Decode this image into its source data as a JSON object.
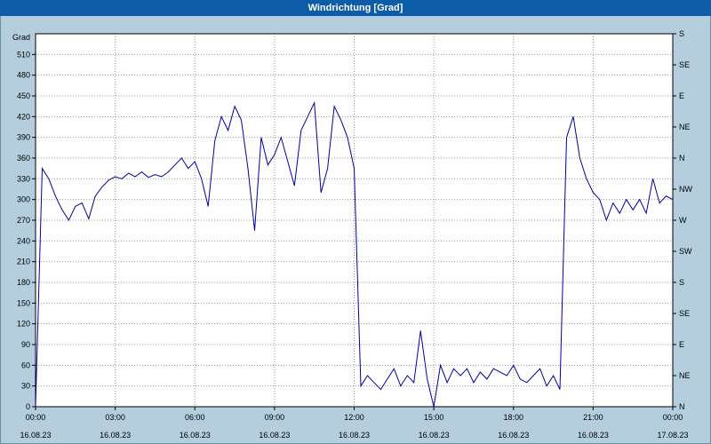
{
  "window": {
    "title": "Windrichtung [Grad]"
  },
  "colors": {
    "background": "#b4cede",
    "title_bg": "#0d5ca8",
    "title_fg": "#ffffff",
    "plot_bg": "#ffffff",
    "plot_border": "#000000",
    "grid": "#999999",
    "line": "#0000a0",
    "label": "#000000"
  },
  "chart_data": {
    "type": "line",
    "title": "Windrichtung [Grad]",
    "ylabel": "Grad",
    "ylim": [
      0,
      540
    ],
    "y_ticks": [
      0,
      30,
      60,
      90,
      120,
      150,
      180,
      210,
      240,
      270,
      300,
      330,
      360,
      390,
      420,
      450,
      480,
      510
    ],
    "right_axis_labels": [
      {
        "deg": 540,
        "label": "S"
      },
      {
        "deg": 495,
        "label": "SE"
      },
      {
        "deg": 450,
        "label": "E"
      },
      {
        "deg": 405,
        "label": "NE"
      },
      {
        "deg": 360,
        "label": "N"
      },
      {
        "deg": 315,
        "label": "NW"
      },
      {
        "deg": 270,
        "label": "W"
      },
      {
        "deg": 225,
        "label": "SW"
      },
      {
        "deg": 180,
        "label": "S"
      },
      {
        "deg": 135,
        "label": "SE"
      },
      {
        "deg": 90,
        "label": "E"
      },
      {
        "deg": 45,
        "label": "NE"
      },
      {
        "deg": 0,
        "label": "N"
      }
    ],
    "x_range_hours": [
      0,
      24
    ],
    "x_ticks": [
      {
        "time": "00:00",
        "date": "16.08.23"
      },
      {
        "time": "03:00",
        "date": "16.08.23"
      },
      {
        "time": "06:00",
        "date": "16.08.23"
      },
      {
        "time": "09:00",
        "date": "16.08.23"
      },
      {
        "time": "12:00",
        "date": "16.08.23"
      },
      {
        "time": "15:00",
        "date": "16.08.23"
      },
      {
        "time": "18:00",
        "date": "16.08.23"
      },
      {
        "time": "21:00",
        "date": "16.08.23"
      },
      {
        "time": "00:00",
        "date": "17.08.23"
      }
    ],
    "grid": "dotted",
    "series": [
      {
        "name": "Windrichtung",
        "color": "#0000a0",
        "x": [
          0,
          0.25,
          0.5,
          0.75,
          1,
          1.25,
          1.5,
          1.75,
          2,
          2.25,
          2.5,
          2.75,
          3,
          3.25,
          3.5,
          3.75,
          4,
          4.25,
          4.5,
          4.75,
          5,
          5.25,
          5.5,
          5.75,
          6,
          6.25,
          6.5,
          6.75,
          7,
          7.25,
          7.5,
          7.75,
          8,
          8.25,
          8.5,
          8.75,
          9,
          9.25,
          9.5,
          9.75,
          10,
          10.25,
          10.5,
          10.75,
          11,
          11.25,
          11.5,
          11.75,
          12,
          12.25,
          12.5,
          12.75,
          13,
          13.25,
          13.5,
          13.75,
          14,
          14.25,
          14.5,
          14.75,
          15,
          15.25,
          15.5,
          15.75,
          16,
          16.25,
          16.5,
          16.75,
          17,
          17.25,
          17.5,
          17.75,
          18,
          18.25,
          18.5,
          18.75,
          19,
          19.25,
          19.5,
          19.75,
          20,
          20.25,
          20.5,
          20.75,
          21,
          21.25,
          21.5,
          21.75,
          22,
          22.25,
          22.5,
          22.75,
          23,
          23.25,
          23.5,
          23.75,
          24
        ],
        "values": [
          0,
          345,
          330,
          305,
          285,
          270,
          290,
          295,
          272,
          305,
          318,
          328,
          333,
          330,
          338,
          333,
          340,
          332,
          336,
          333,
          340,
          350,
          360,
          345,
          355,
          330,
          290,
          385,
          420,
          400,
          435,
          415,
          345,
          255,
          390,
          350,
          365,
          390,
          355,
          320,
          400,
          420,
          440,
          310,
          345,
          435,
          415,
          390,
          345,
          30,
          45,
          35,
          25,
          40,
          55,
          30,
          45,
          35,
          110,
          40,
          0,
          60,
          35,
          55,
          45,
          55,
          35,
          50,
          40,
          55,
          50,
          45,
          60,
          40,
          35,
          45,
          55,
          30,
          45,
          25,
          390,
          420,
          360,
          330,
          310,
          300,
          270,
          295,
          280,
          300,
          285,
          300,
          280,
          330,
          295,
          305,
          300
        ]
      }
    ]
  }
}
